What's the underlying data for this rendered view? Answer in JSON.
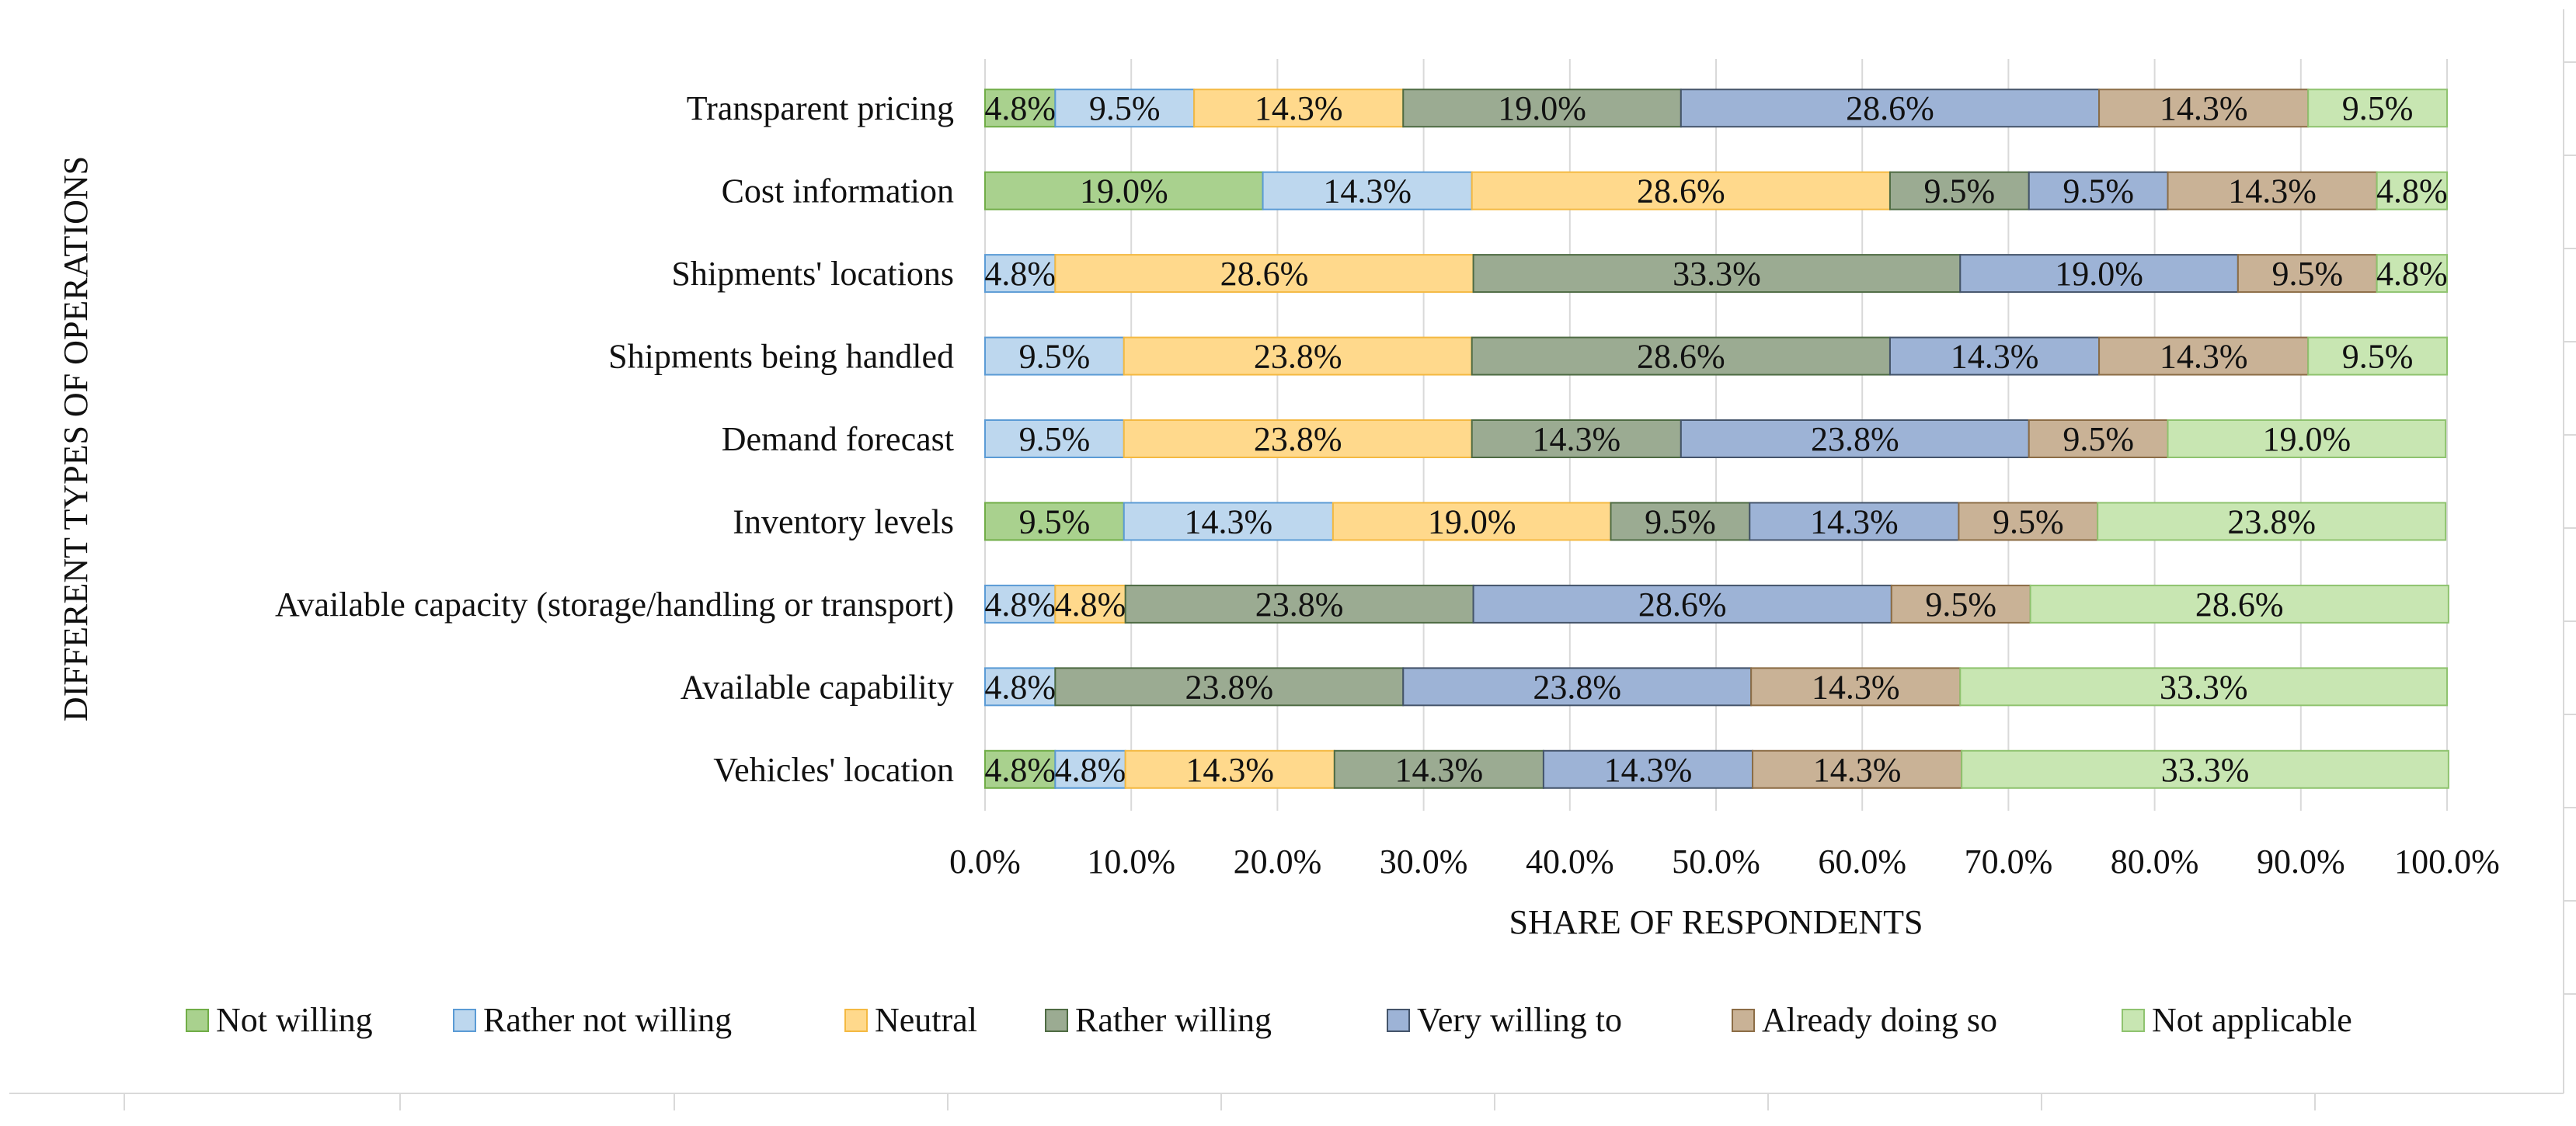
{
  "chart_data": {
    "type": "bar",
    "orientation": "horizontal",
    "stacked": true,
    "ylabel": "DIFFERENT TYPES OF OPERATIONS",
    "xlabel": "SHARE OF RESPONDENTS",
    "xlim": [
      0,
      100
    ],
    "x_ticks": [
      "0.0%",
      "10.0%",
      "20.0%",
      "30.0%",
      "40.0%",
      "50.0%",
      "60.0%",
      "70.0%",
      "80.0%",
      "90.0%",
      "100.0%"
    ],
    "legend_position": "bottom",
    "grid": true,
    "categories": [
      "Transparent pricing",
      "Cost information",
      "Shipments' locations",
      "Shipments being handled",
      "Demand forecast",
      "Inventory levels",
      "Available capacity (storage/handling or transport)",
      "Available capability",
      "Vehicles' location"
    ],
    "series": [
      {
        "name": "Not willing",
        "color": "#a9d18e",
        "stroke": "#70ad47",
        "values": [
          4.8,
          19.0,
          0,
          0,
          0,
          9.5,
          0,
          0,
          4.8
        ],
        "labels": [
          "4.8%",
          "19.0%",
          "",
          "",
          "",
          "9.5%",
          "",
          "",
          "4.8%"
        ]
      },
      {
        "name": "Rather not willing",
        "color": "#bdd7ee",
        "stroke": "#5b9bd5",
        "values": [
          9.5,
          14.3,
          4.8,
          9.5,
          9.5,
          14.3,
          4.8,
          4.8,
          4.8
        ],
        "labels": [
          "9.5%",
          "14.3%",
          "4.8%",
          "9.5%",
          "9.5%",
          "14.3%",
          "4.8%",
          "4.8%",
          "4.8%"
        ]
      },
      {
        "name": "Neutral",
        "color": "#ffd98c",
        "stroke": "#f4b942",
        "values": [
          14.3,
          28.6,
          28.6,
          23.8,
          23.8,
          19.0,
          4.8,
          0,
          14.3
        ],
        "labels": [
          "14.3%",
          "28.6%",
          "28.6%",
          "23.8%",
          "23.8%",
          "19.0%",
          "4.8%",
          "",
          "14.3%"
        ]
      },
      {
        "name": "Rather willing",
        "color": "#9bab92",
        "stroke": "#4e6b43",
        "values": [
          19.0,
          9.5,
          33.3,
          28.6,
          14.3,
          9.5,
          23.8,
          23.8,
          14.3
        ],
        "labels": [
          "19.0%",
          "9.5%",
          "33.3%",
          "28.6%",
          "14.3%",
          "9.5%",
          "23.8%",
          "23.8%",
          "14.3%"
        ]
      },
      {
        "name": "Very willing to",
        "color": "#9db3d6",
        "stroke": "#44546a",
        "values": [
          28.6,
          9.5,
          19.0,
          14.3,
          23.8,
          14.3,
          28.6,
          23.8,
          14.3
        ],
        "labels": [
          "28.6%",
          "9.5%",
          "19.0%",
          "14.3%",
          "23.8%",
          "14.3%",
          "28.6%",
          "23.8%",
          "14.3%"
        ]
      },
      {
        "name": "Already doing so",
        "color": "#c9b296",
        "stroke": "#8c6d46",
        "values": [
          14.3,
          14.3,
          9.5,
          14.3,
          9.5,
          9.5,
          9.5,
          14.3,
          14.3
        ],
        "labels": [
          "14.3%",
          "14.3%",
          "9.5%",
          "14.3%",
          "9.5%",
          "9.5%",
          "9.5%",
          "14.3%",
          "14.3%"
        ]
      },
      {
        "name": "Not applicable",
        "color": "#c8e6b2",
        "stroke": "#8fc36f",
        "values": [
          9.5,
          4.8,
          4.8,
          9.5,
          19.0,
          23.8,
          28.6,
          33.3,
          33.3
        ],
        "labels": [
          "9.5%",
          "4.8%",
          "4.8%",
          "9.5%",
          "19.0%",
          "23.8%",
          "28.6%",
          "33.3%",
          "33.3%"
        ]
      }
    ]
  }
}
